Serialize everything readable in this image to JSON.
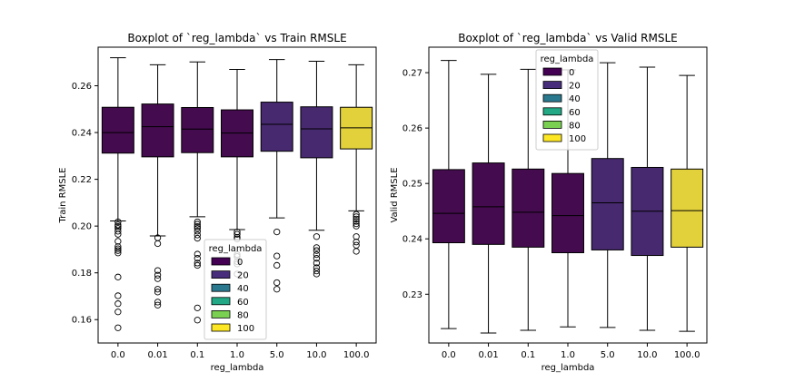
{
  "chart_data": [
    {
      "type": "boxplot",
      "title": "Boxplot of `reg_lambda` vs Train RMSLE",
      "xlabel": "reg_lambda",
      "ylabel": "Train RMSLE",
      "categories": [
        "0.0",
        "0.01",
        "0.1",
        "1.0",
        "5.0",
        "10.0",
        "100.0"
      ],
      "ylim": [
        0.15,
        0.2765
      ],
      "yticks": [
        0.16,
        0.18,
        0.2,
        0.22,
        0.24,
        0.26
      ],
      "ytick_labels": [
        "0.16",
        "0.18",
        "0.20",
        "0.22",
        "0.24",
        "0.26"
      ],
      "boxes": [
        {
          "category": "0.0",
          "hue": "0",
          "whislo": 0.2022,
          "q1": 0.2312,
          "med": 0.24,
          "q3": 0.2508,
          "whishi": 0.272,
          "fliers": [
            0.2018,
            0.2005,
            0.1998,
            0.199,
            0.1978,
            0.1965,
            0.1935,
            0.1912,
            0.1903,
            0.1895,
            0.1885,
            0.1782,
            0.1702,
            0.1668,
            0.1633,
            0.1565
          ]
        },
        {
          "category": "0.01",
          "hue": "0",
          "whislo": 0.1958,
          "q1": 0.2296,
          "med": 0.2425,
          "q3": 0.2522,
          "whishi": 0.269,
          "fliers": [
            0.195,
            0.1925,
            0.181,
            0.179,
            0.1775,
            0.173,
            0.1718,
            0.1675,
            0.1662
          ]
        },
        {
          "category": "0.1",
          "hue": "0",
          "whislo": 0.204,
          "q1": 0.2314,
          "med": 0.2415,
          "q3": 0.2507,
          "whishi": 0.2702,
          "fliers": [
            0.2018,
            0.2008,
            0.1998,
            0.199,
            0.1978,
            0.1962,
            0.1948,
            0.188,
            0.1862,
            0.1842,
            0.1832,
            0.165,
            0.1598
          ]
        },
        {
          "category": "1.0",
          "hue": "0",
          "whislo": 0.1985,
          "q1": 0.2296,
          "med": 0.2398,
          "q3": 0.2497,
          "whishi": 0.267,
          "fliers": [
            0.1975,
            0.1965,
            0.1952,
            0.1945,
            0.1878,
            0.187,
            0.1848,
            0.1838,
            0.1795
          ]
        },
        {
          "category": "5.0",
          "hue": "20",
          "whislo": 0.2035,
          "q1": 0.232,
          "med": 0.2435,
          "q3": 0.253,
          "whishi": 0.2712,
          "fliers": [
            0.1975,
            0.1872,
            0.1832,
            0.1758,
            0.173
          ]
        },
        {
          "category": "10.0",
          "hue": "20",
          "whislo": 0.1982,
          "q1": 0.2292,
          "med": 0.2416,
          "q3": 0.251,
          "whishi": 0.2705,
          "fliers": [
            0.1955,
            0.1908,
            0.1895,
            0.1878,
            0.1862,
            0.1842,
            0.1822,
            0.1808,
            0.1795
          ]
        },
        {
          "category": "100.0",
          "hue": "100",
          "whislo": 0.2065,
          "q1": 0.233,
          "med": 0.242,
          "q3": 0.2508,
          "whishi": 0.269,
          "fliers": [
            0.205,
            0.204,
            0.203,
            0.202,
            0.201,
            0.2,
            0.1955,
            0.1932,
            0.1918,
            0.1892
          ]
        }
      ],
      "legend": {
        "title": "reg_lambda",
        "placement": "lower center",
        "entries": [
          "0",
          "20",
          "40",
          "60",
          "80",
          "100"
        ]
      }
    },
    {
      "type": "boxplot",
      "title": "Boxplot of `reg_lambda` vs Valid RMSLE",
      "xlabel": "reg_lambda",
      "ylabel": "Valid RMSLE",
      "categories": [
        "0.0",
        "0.01",
        "0.1",
        "1.0",
        "5.0",
        "10.0",
        "100.0"
      ],
      "ylim": [
        0.2212,
        0.2746
      ],
      "yticks": [
        0.23,
        0.24,
        0.25,
        0.26,
        0.27
      ],
      "ytick_labels": [
        "0.23",
        "0.24",
        "0.25",
        "0.26",
        "0.27"
      ],
      "boxes": [
        {
          "category": "0.0",
          "hue": "0",
          "whislo": 0.2238,
          "q1": 0.2393,
          "med": 0.2446,
          "q3": 0.2525,
          "whishi": 0.2722,
          "fliers": []
        },
        {
          "category": "0.01",
          "hue": "0",
          "whislo": 0.223,
          "q1": 0.239,
          "med": 0.2458,
          "q3": 0.2537,
          "whishi": 0.2697,
          "fliers": []
        },
        {
          "category": "0.1",
          "hue": "0",
          "whislo": 0.2235,
          "q1": 0.2385,
          "med": 0.2448,
          "q3": 0.2526,
          "whishi": 0.2706,
          "fliers": []
        },
        {
          "category": "1.0",
          "hue": "0",
          "whislo": 0.2241,
          "q1": 0.2375,
          "med": 0.2442,
          "q3": 0.2518,
          "whishi": 0.2705,
          "fliers": []
        },
        {
          "category": "5.0",
          "hue": "20",
          "whislo": 0.224,
          "q1": 0.238,
          "med": 0.2465,
          "q3": 0.2545,
          "whishi": 0.2718,
          "fliers": []
        },
        {
          "category": "10.0",
          "hue": "20",
          "whislo": 0.2235,
          "q1": 0.237,
          "med": 0.245,
          "q3": 0.2529,
          "whishi": 0.271,
          "fliers": []
        },
        {
          "category": "100.0",
          "hue": "100",
          "whislo": 0.2233,
          "q1": 0.2385,
          "med": 0.2451,
          "q3": 0.2526,
          "whishi": 0.2695,
          "fliers": []
        }
      ],
      "legend": {
        "title": "reg_lambda",
        "placement": "upper center",
        "entries": [
          "0",
          "20",
          "40",
          "60",
          "80",
          "100"
        ]
      }
    }
  ],
  "palette": {
    "0": "#440154",
    "20": "#472d7b",
    "40": "#2a788e",
    "60": "#22a884",
    "80": "#7ad151",
    "100": "#fde725"
  },
  "box_colors": {
    "0": "#440b4e",
    "20": "#46296f",
    "100": "#e3d13b"
  }
}
